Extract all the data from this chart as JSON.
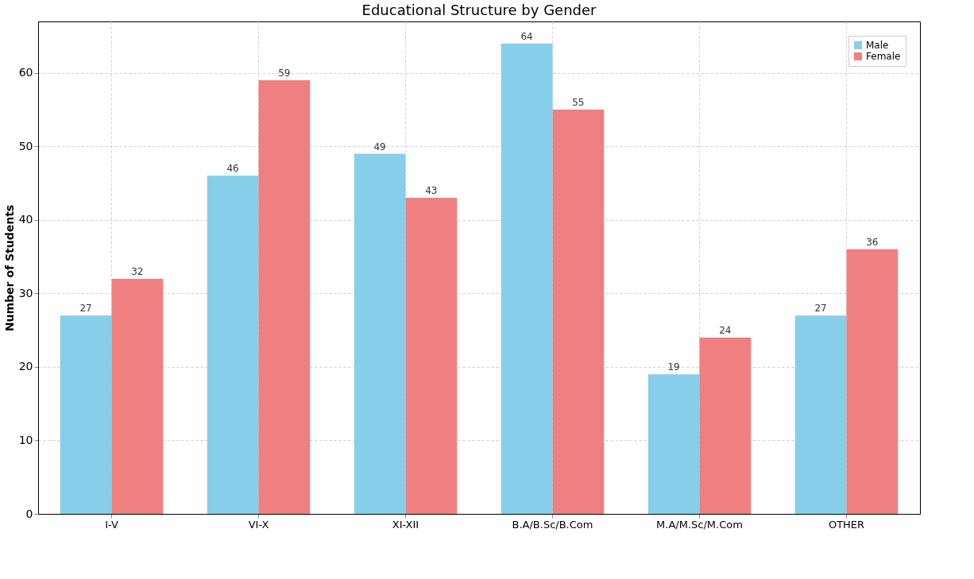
{
  "chart_data": {
    "type": "bar",
    "title": "Educational Structure by Gender",
    "ylabel": "Number of Students",
    "categories": [
      "I-V",
      "VI-X",
      "XI-XII",
      "B.A/B.Sc/B.Com",
      "M.A/M.Sc/M.Com",
      "OTHER"
    ],
    "series": [
      {
        "name": "Male",
        "color": "#87ceeb",
        "values": [
          27,
          46,
          49,
          64,
          19,
          27
        ]
      },
      {
        "name": "Female",
        "color": "#f08080",
        "values": [
          32,
          59,
          43,
          55,
          24,
          36
        ]
      }
    ],
    "ylim": [
      0,
      67
    ],
    "yticks": [
      0,
      10,
      20,
      30,
      40,
      50,
      60
    ],
    "grid": true,
    "legend": "top right",
    "data_labels": true
  }
}
